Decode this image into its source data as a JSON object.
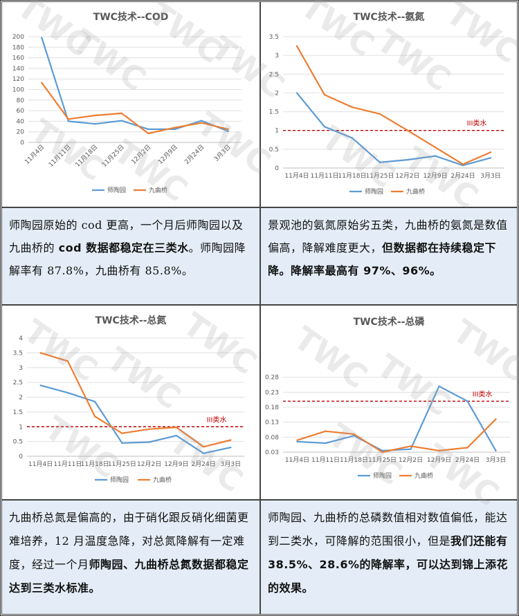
{
  "watermark": "TWC",
  "charts": [
    {
      "title": "TWC技术--COD",
      "categories": [
        "11月4日",
        "11月11日",
        "11月18日",
        "11月25日",
        "12月2日",
        "12月9日",
        "2月24日",
        "3月3日"
      ],
      "series": [
        {
          "name": "师陶园",
          "color": "#5b9bd5",
          "values": [
            198,
            40,
            35,
            41,
            25,
            25,
            41,
            21
          ]
        },
        {
          "name": "九曲桥",
          "color": "#ed7d31",
          "values": [
            113,
            44,
            51,
            55,
            17,
            28,
            37,
            25
          ]
        }
      ],
      "yticks": [
        0,
        20,
        40,
        60,
        80,
        100,
        120,
        140,
        160,
        180,
        200
      ],
      "ylim": [
        0,
        200
      ],
      "rotated_labels": true,
      "threshold": null
    },
    {
      "title": "TWC技术--氨氮",
      "categories": [
        "11月4日",
        "11月11日",
        "11月18日",
        "11月25日",
        "12月2日",
        "12月9日",
        "2月24日",
        "3月3日"
      ],
      "series": [
        {
          "name": "师陶园",
          "color": "#5b9bd5",
          "values": [
            2.0,
            1.1,
            0.8,
            0.15,
            0.22,
            0.32,
            0.07,
            0.27
          ]
        },
        {
          "name": "九曲桥",
          "color": "#ed7d31",
          "values": [
            3.25,
            1.95,
            1.62,
            1.44,
            1.0,
            0.55,
            0.1,
            0.42
          ]
        }
      ],
      "yticks": [
        0,
        0.5,
        1,
        1.5,
        2,
        2.5,
        3,
        3.5
      ],
      "ylim": [
        0,
        3.5
      ],
      "rotated_labels": false,
      "threshold": {
        "value": 1.0,
        "label": "III类水",
        "color": "#c00000"
      }
    },
    {
      "title": "TWC技术--总氮",
      "categories": [
        "11月4日",
        "11月11日",
        "11月18日",
        "11月25日",
        "12月2日",
        "12月9日",
        "2月24日",
        "3月3日"
      ],
      "series": [
        {
          "name": "师陶园",
          "color": "#5b9bd5",
          "values": [
            2.4,
            2.15,
            1.85,
            0.45,
            0.48,
            0.7,
            0.1,
            0.3
          ]
        },
        {
          "name": "九曲桥",
          "color": "#ed7d31",
          "values": [
            3.5,
            3.22,
            1.35,
            0.78,
            0.92,
            0.98,
            0.32,
            0.55
          ]
        }
      ],
      "yticks": [
        0,
        0.5,
        1,
        1.5,
        2,
        2.5,
        3,
        3.5,
        4
      ],
      "ylim": [
        0,
        4
      ],
      "rotated_labels": false,
      "threshold": {
        "value": 1.0,
        "label": "III类水",
        "color": "#c00000"
      }
    },
    {
      "title": "TWC技术--总磷",
      "categories": [
        "11月4日",
        "11月11日",
        "11月18日",
        "11月25日",
        "12月2日",
        "12月9日",
        "2月24日",
        "3月3日"
      ],
      "series": [
        {
          "name": "师陶园",
          "color": "#5b9bd5",
          "values": [
            0.065,
            0.06,
            0.085,
            0.035,
            0.04,
            0.25,
            0.2,
            0.035
          ]
        },
        {
          "name": "九曲桥",
          "color": "#ed7d31",
          "values": [
            0.07,
            0.1,
            0.09,
            0.03,
            0.05,
            0.035,
            0.045,
            0.14
          ]
        }
      ],
      "yticks": [
        0.03,
        0.08,
        0.13,
        0.18,
        0.23,
        0.28
      ],
      "ylim": [
        0.03,
        0.3
      ],
      "rotated_labels": false,
      "threshold": {
        "value": 0.2,
        "label": "III类水",
        "color": "#c00000"
      }
    }
  ],
  "notes": [
    {
      "segments": [
        {
          "t": "师陶园原始的 cod 更高，一个月后师陶园以及九曲桥的 ",
          "b": false
        },
        {
          "t": "cod 数据都稳定在三类水",
          "b": true
        },
        {
          "t": "。师陶园降解率有 87.8%，九曲桥有 85.8%。",
          "b": false
        }
      ]
    },
    {
      "segments": [
        {
          "t": "景观池的氨氮原始劣五类，九曲桥的氨氮是数值偏高，降解难度更大，",
          "b": false
        },
        {
          "t": "但数据都在持续稳定下降。降解率最高有 97%、96%。",
          "b": true
        }
      ]
    },
    {
      "segments": [
        {
          "t": "九曲桥总氮是偏高的，由于硝化跟反硝化细菌更难培养，12 月温度急降，对总氮降解有一定难度，经过一个月",
          "b": false
        },
        {
          "t": "师陶园、九曲桥总氮数据都稳定达到三类水标准。",
          "b": true
        }
      ]
    },
    {
      "segments": [
        {
          "t": "师陶园、九曲桥的总磷数值相对数值偏低，能达到二类水，可降解的范围很小，但是",
          "b": false
        },
        {
          "t": "我们还能有 38.5%、28.6%的降解率，可以达到锦上添花的效果。",
          "b": true
        }
      ]
    }
  ]
}
